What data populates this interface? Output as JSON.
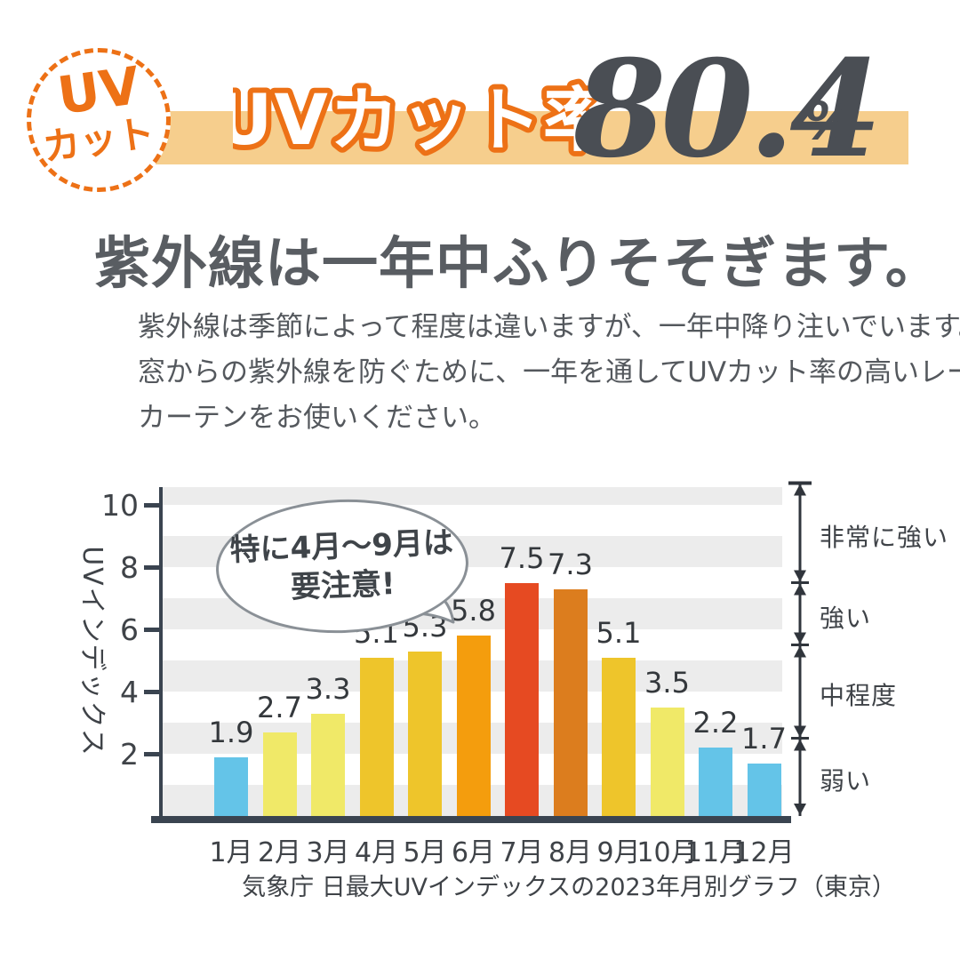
{
  "badge": {
    "line1": "UV",
    "line2": "カット"
  },
  "header": {
    "title_outlined": "UVカット率",
    "value": "80.4",
    "unit": "%"
  },
  "headline": "紫外線は一年中ふりそそぎます。",
  "paragraph_lines": [
    "紫外線は季節によって程度は違いますが、一年中降り注いでいます。",
    "窓からの紫外線を防ぐために、一年を通してUVカット率の高いレース",
    "カーテンをお使いください。"
  ],
  "colors": {
    "accent_orange": "#ED7116",
    "banner_peach": "#F6CE8D",
    "value_dark": "#4A4E54",
    "heading_gray": "#595D62",
    "body_gray": "#54585D",
    "axis_dark": "#3A4450",
    "stripe_gray": "#ECECEC",
    "bubble_border": "#8A9096",
    "scale_dark": "#30353C"
  },
  "chart_data": {
    "type": "bar",
    "title": "",
    "xlabel": "",
    "ylabel": "UVインデックス",
    "categories": [
      "1月",
      "2月",
      "3月",
      "4月",
      "5月",
      "6月",
      "7月",
      "8月",
      "9月",
      "10月",
      "11月",
      "12月"
    ],
    "values": [
      1.9,
      2.7,
      3.3,
      5.1,
      5.3,
      5.8,
      7.5,
      7.3,
      5.1,
      3.5,
      2.2,
      1.7
    ],
    "bar_colors": [
      "#64C4E8",
      "#F0E968",
      "#F0E968",
      "#EEC52B",
      "#EEC52B",
      "#F49D0D",
      "#E64A22",
      "#DC7D1E",
      "#EEC52B",
      "#F0E968",
      "#64C4E8",
      "#64C4E8"
    ],
    "yticks": [
      2,
      4,
      6,
      8,
      10
    ],
    "ylim": [
      0,
      10.7
    ],
    "grid": "horizontal-stripes",
    "legend": "none",
    "annotation": {
      "lines": [
        "特に4月〜9月は",
        "要注意!"
      ]
    },
    "right_scale": [
      {
        "label": "非常に強い",
        "from": 7.5,
        "to": 10.7
      },
      {
        "label": "強い",
        "from": 5.5,
        "to": 7.5
      },
      {
        "label": "中程度",
        "from": 2.5,
        "to": 5.5
      },
      {
        "label": "弱い",
        "from": 0,
        "to": 2.5
      }
    ],
    "caption": "気象庁 日最大UVインデックスの2023年月別グラフ（東京）"
  }
}
